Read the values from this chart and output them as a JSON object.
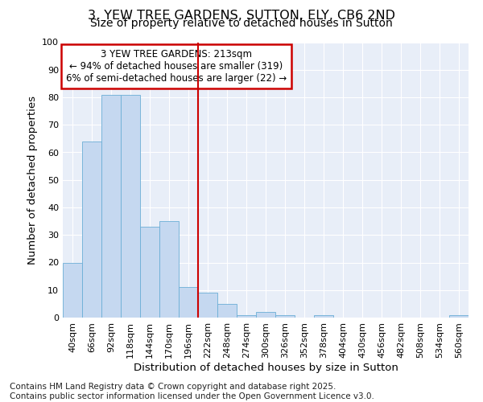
{
  "title": "3, YEW TREE GARDENS, SUTTON, ELY, CB6 2ND",
  "subtitle": "Size of property relative to detached houses in Sutton",
  "xlabel": "Distribution of detached houses by size in Sutton",
  "ylabel": "Number of detached properties",
  "categories": [
    "40sqm",
    "66sqm",
    "92sqm",
    "118sqm",
    "144sqm",
    "170sqm",
    "196sqm",
    "222sqm",
    "248sqm",
    "274sqm",
    "300sqm",
    "326sqm",
    "352sqm",
    "378sqm",
    "404sqm",
    "430sqm",
    "456sqm",
    "482sqm",
    "508sqm",
    "534sqm",
    "560sqm"
  ],
  "values": [
    20,
    64,
    81,
    81,
    33,
    35,
    11,
    9,
    5,
    1,
    2,
    1,
    0,
    1,
    0,
    0,
    0,
    0,
    0,
    0,
    1
  ],
  "bar_color": "#c5d8f0",
  "bar_edge_color": "#6baed6",
  "vline_x": 7,
  "vline_color": "#cc0000",
  "annotation_line1": "3 YEW TREE GARDENS: 213sqm",
  "annotation_line2": "← 94% of detached houses are smaller (319)",
  "annotation_line3": "6% of semi-detached houses are larger (22) →",
  "annotation_box_color": "#cc0000",
  "ylim": [
    0,
    100
  ],
  "yticks": [
    0,
    10,
    20,
    30,
    40,
    50,
    60,
    70,
    80,
    90,
    100
  ],
  "fig_bg_color": "#ffffff",
  "ax_bg_color": "#e8eef8",
  "grid_color": "#ffffff",
  "footer": "Contains HM Land Registry data © Crown copyright and database right 2025.\nContains public sector information licensed under the Open Government Licence v3.0.",
  "title_fontsize": 11.5,
  "subtitle_fontsize": 10,
  "axis_label_fontsize": 9.5,
  "tick_fontsize": 8,
  "annot_fontsize": 8.5,
  "footer_fontsize": 7.5
}
